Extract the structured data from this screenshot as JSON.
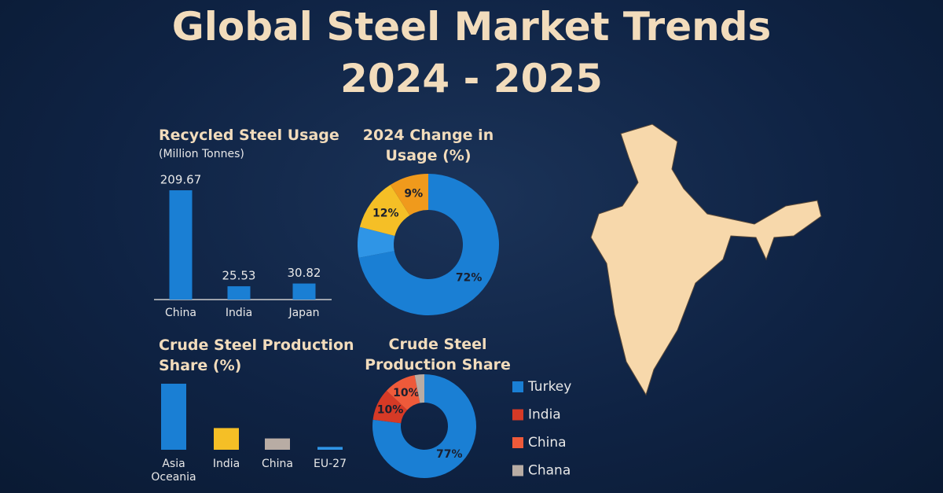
{
  "title": "Global Steel Market Trends",
  "subtitle": "2024 - 2025",
  "chart_data": [
    {
      "type": "bar",
      "title": "Recycled Steel Usage",
      "subtitle": "(Million Tonnes)",
      "categories": [
        "China",
        "India",
        "Japan"
      ],
      "values": [
        209.67,
        25.53,
        30.82
      ],
      "color": "#1a7fd4"
    },
    {
      "type": "donut",
      "title": "2024 Change in Usage (%)",
      "categories": [
        null,
        null,
        null,
        null
      ],
      "values": [
        72,
        7,
        12,
        9
      ],
      "value_labels": [
        "72%",
        null,
        "12%",
        "9%"
      ],
      "colors": [
        "#1a7fd4",
        "#2f95e6",
        "#f5bf26",
        "#f09a1c"
      ]
    },
    {
      "type": "bar",
      "title": "Crude Steel Production Share (%)",
      "categories": [
        "Asia Oceania",
        "India",
        "China",
        "EU-27"
      ],
      "values": [
        70,
        23,
        12,
        3
      ],
      "colors": [
        "#1a7fd4",
        "#f5bf26",
        "#b8aca4",
        "#2f95e6"
      ]
    },
    {
      "type": "donut",
      "title": "Crude Steel Production Share",
      "categories": [
        "Turkey",
        "India",
        "China",
        "Chana"
      ],
      "values": [
        77,
        10,
        10,
        3
      ],
      "value_labels": [
        "77%",
        "10%",
        "10%",
        null
      ],
      "colors": [
        "#1a7fd4",
        "#d63a26",
        "#ee5a3a",
        "#b8aca4"
      ]
    }
  ]
}
